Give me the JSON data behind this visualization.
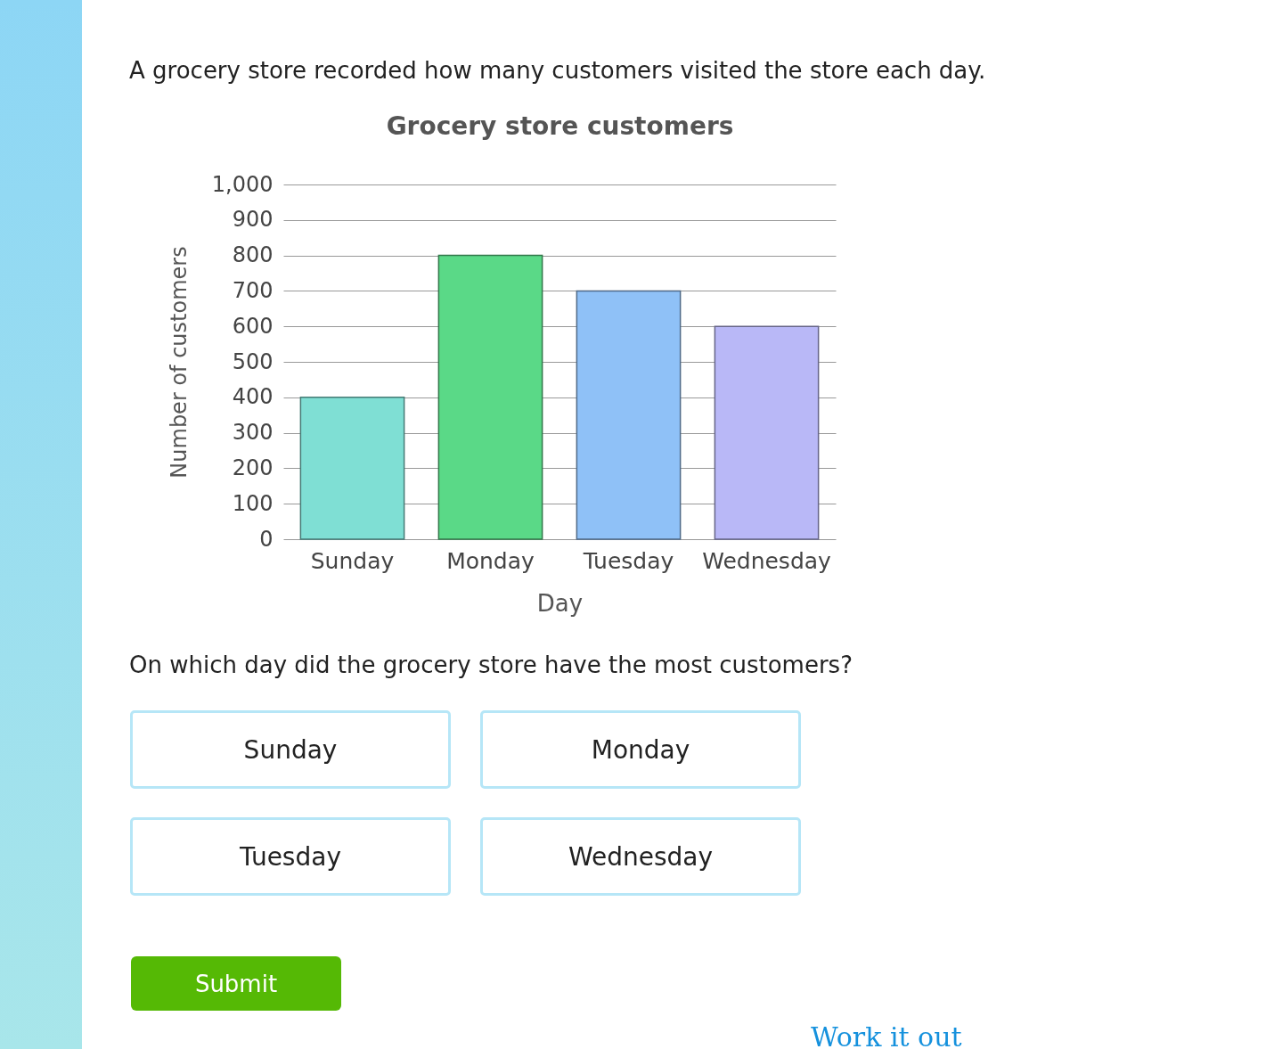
{
  "chart_data": {
    "type": "bar",
    "title": "Grocery store customers",
    "xlabel": "Day",
    "ylabel": "Number of customers",
    "categories": [
      "Sunday",
      "Monday",
      "Tuesday",
      "Wednesday"
    ],
    "values": [
      400,
      800,
      700,
      600
    ],
    "colors": [
      "#7fdfd4",
      "#5ad987",
      "#8fc1f7",
      "#b9b8f7"
    ],
    "ylim": [
      0,
      1000
    ],
    "yticks": [
      0,
      {
        "value": 100,
        "label": "100"
      },
      200,
      300,
      400,
      500,
      600,
      700,
      800,
      900,
      {
        "value": 1000,
        "label": "1,000"
      }
    ],
    "grid": "y",
    "legend": false,
    "annotations": [
      "A grocery store recorded how many customers visited the store each day.",
      "On which day did the grocery store have the most customers?",
      "Sunday",
      "Monday",
      "Tuesday",
      "Wednesday",
      "Submit",
      "Work it out"
    ]
  }
}
